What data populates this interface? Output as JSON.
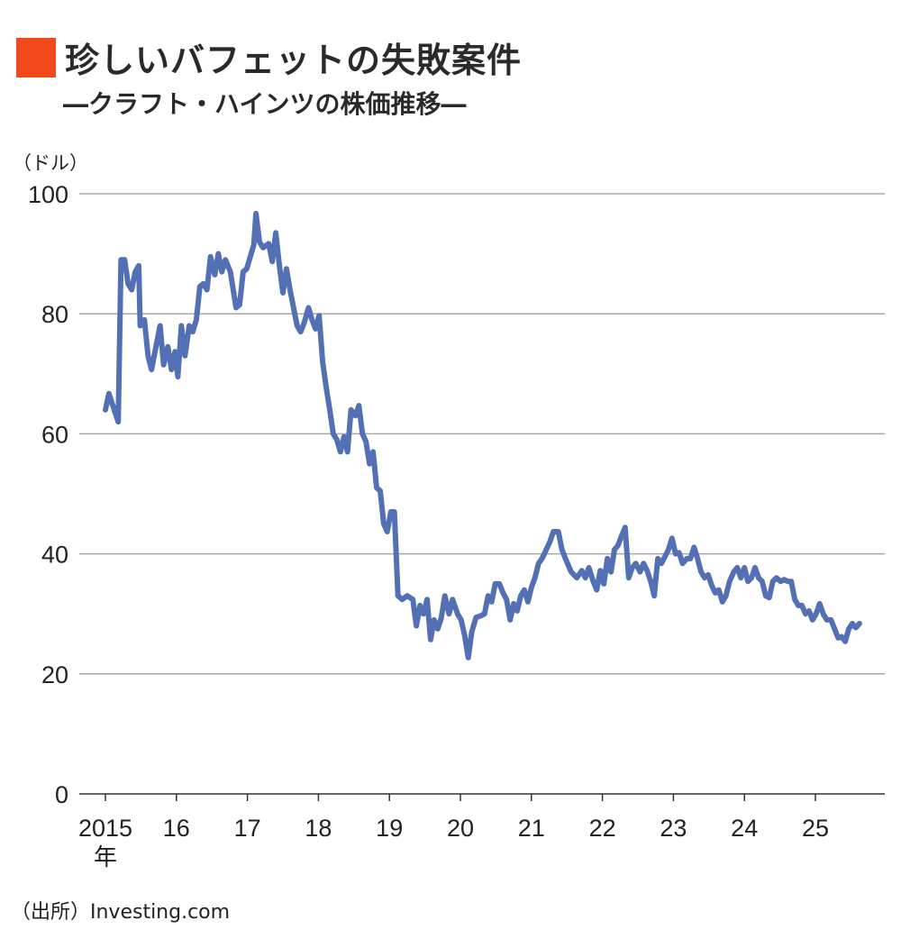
{
  "header": {
    "title": "珍しいバフェットの失敗案件",
    "subtitle": "―クラフト・ハインツの株価推移―"
  },
  "source": "（出所）Investing.com",
  "colors": {
    "accent": "#f04a1c",
    "line": "#5470b5",
    "grid": "#a8a8a8"
  },
  "chart_data": {
    "type": "line",
    "title": "珍しいバフェットの失敗案件",
    "subtitle": "―クラフト・ハインツの株価推移―",
    "ylabel": "（ドル）",
    "xlabel": "",
    "ylim": [
      0,
      100
    ],
    "xlim": [
      2014.6,
      2025.9
    ],
    "yticks": [
      0,
      20,
      40,
      60,
      80,
      100
    ],
    "ytick_labels": [
      "0",
      "20",
      "40",
      "60",
      "80",
      "100"
    ],
    "xticks": [
      2015,
      2016,
      2017,
      2018,
      2019,
      2020,
      2021,
      2022,
      2023,
      2024,
      2025
    ],
    "xtick_labels": [
      "2015",
      "16",
      "17",
      "18",
      "19",
      "20",
      "21",
      "22",
      "23",
      "24",
      "25"
    ],
    "xtick_first_suffix": "年",
    "grid": "horizontal",
    "series": [
      {
        "x": [
          2015.0,
          2015.05,
          2015.11,
          2015.18,
          2015.22,
          2015.27,
          2015.32,
          2015.37,
          2015.42,
          2015.47,
          2015.49,
          2015.55,
          2015.6,
          2015.65,
          2015.72,
          2015.77,
          2015.82,
          2015.88,
          2015.93,
          2015.98,
          2016.02,
          2016.07,
          2016.12,
          2016.18,
          2016.23,
          2016.28,
          2016.33,
          2016.38,
          2016.43,
          2016.48,
          2016.54,
          2016.59,
          2016.64,
          2016.69,
          2016.76,
          2016.84,
          2016.89,
          2016.94,
          2016.99,
          2017.04,
          2017.09,
          2017.12,
          2017.17,
          2017.22,
          2017.3,
          2017.35,
          2017.4,
          2017.45,
          2017.5,
          2017.55,
          2017.6,
          2017.65,
          2017.7,
          2017.75,
          2017.8,
          2017.86,
          2017.91,
          2017.96,
          2018.01,
          2018.06,
          2018.11,
          2018.16,
          2018.21,
          2018.26,
          2018.31,
          2018.36,
          2018.41,
          2018.46,
          2018.52,
          2018.57,
          2018.62,
          2018.67,
          2018.72,
          2018.77,
          2018.82,
          2018.87,
          2018.92,
          2018.97,
          2019.02,
          2019.07,
          2019.12,
          2019.18,
          2019.25,
          2019.33,
          2019.38,
          2019.43,
          2019.48,
          2019.53,
          2019.58,
          2019.63,
          2019.68,
          2019.73,
          2019.78,
          2019.84,
          2019.89,
          2019.96,
          2020.01,
          2020.06,
          2020.11,
          2020.16,
          2020.22,
          2020.29,
          2020.34,
          2020.39,
          2020.44,
          2020.49,
          2020.55,
          2020.6,
          2020.65,
          2020.7,
          2020.75,
          2020.8,
          2020.85,
          2020.9,
          2020.95,
          2021.0,
          2021.05,
          2021.1,
          2021.15,
          2021.21,
          2021.26,
          2021.31,
          2021.38,
          2021.43,
          2021.48,
          2021.56,
          2021.64,
          2021.71,
          2021.76,
          2021.81,
          2021.87,
          2021.92,
          2021.97,
          2022.02,
          2022.07,
          2022.12,
          2022.17,
          2022.22,
          2022.27,
          2022.32,
          2022.37,
          2022.42,
          2022.47,
          2022.53,
          2022.58,
          2022.63,
          2022.68,
          2022.73,
          2022.78,
          2022.83,
          2022.88,
          2022.93,
          2022.98,
          2023.03,
          2023.08,
          2023.13,
          2023.19,
          2023.24,
          2023.29,
          2023.34,
          2023.39,
          2023.44,
          2023.49,
          2023.54,
          2023.59,
          2023.64,
          2023.69,
          2023.74,
          2023.79,
          2023.85,
          2023.9,
          2023.95,
          2024.0,
          2024.05,
          2024.1,
          2024.15,
          2024.2,
          2024.25,
          2024.3,
          2024.35,
          2024.4,
          2024.45,
          2024.51,
          2024.56,
          2024.61,
          2024.66,
          2024.71,
          2024.76,
          2024.81,
          2024.86,
          2024.91,
          2024.96,
          2025.01,
          2025.06,
          2025.11,
          2025.16,
          2025.22,
          2025.27,
          2025.32,
          2025.37,
          2025.42,
          2025.47,
          2025.52,
          2025.57,
          2025.62
        ],
        "values": [
          64,
          66.7,
          64.5,
          62,
          89,
          89,
          85,
          84,
          87,
          88,
          78,
          79,
          73,
          70.7,
          75,
          78,
          71.5,
          74.5,
          70.7,
          73.7,
          69.5,
          78,
          73,
          78,
          77,
          79,
          84.5,
          85,
          84,
          89.5,
          86.5,
          90,
          87,
          89,
          87,
          81,
          81.5,
          87,
          87.5,
          89.5,
          91.5,
          96.7,
          92,
          91,
          91.7,
          88.7,
          93.5,
          88,
          83.5,
          87.5,
          84,
          81,
          78,
          77,
          78.5,
          81,
          79,
          77.5,
          79.7,
          72,
          67.7,
          64,
          60,
          59,
          57,
          59.5,
          57,
          64,
          63,
          64.7,
          60,
          58.7,
          55,
          57,
          51,
          50.5,
          45,
          43.7,
          47,
          47,
          33,
          32.4,
          33,
          32.4,
          28,
          31.4,
          30,
          32.4,
          25.7,
          29,
          27.5,
          29.3,
          33,
          30,
          32.4,
          30,
          29,
          26.4,
          22.7,
          27,
          29.4,
          29.7,
          30,
          33,
          32,
          35,
          35,
          33.5,
          32.4,
          29,
          31.7,
          30.5,
          33,
          34,
          32,
          34.4,
          36,
          38.4,
          39.2,
          40.7,
          42,
          43.7,
          43.7,
          40.7,
          39.2,
          37,
          36,
          37.2,
          36,
          37.7,
          35.4,
          34,
          37.2,
          35,
          39.2,
          37,
          40.7,
          41.4,
          43,
          44.4,
          36,
          37.7,
          38.4,
          37,
          38.4,
          37.2,
          35.4,
          33,
          39.2,
          38.4,
          39.5,
          40.7,
          42.6,
          40,
          40.2,
          38.4,
          39.2,
          39.2,
          41.1,
          39.2,
          37,
          36,
          36.5,
          34.7,
          33.5,
          34,
          32,
          33,
          35.4,
          37,
          37.7,
          36,
          37.7,
          35.4,
          36,
          37.7,
          36,
          35.4,
          33,
          32.7,
          35.4,
          36,
          35.4,
          35.7,
          35.4,
          35.4,
          32.4,
          31.4,
          31.4,
          30,
          30.5,
          29,
          30,
          31.7,
          30,
          29,
          29,
          27.5,
          26,
          26.2,
          25.4,
          27.5,
          28.4,
          27.7,
          28.4
        ]
      }
    ]
  }
}
